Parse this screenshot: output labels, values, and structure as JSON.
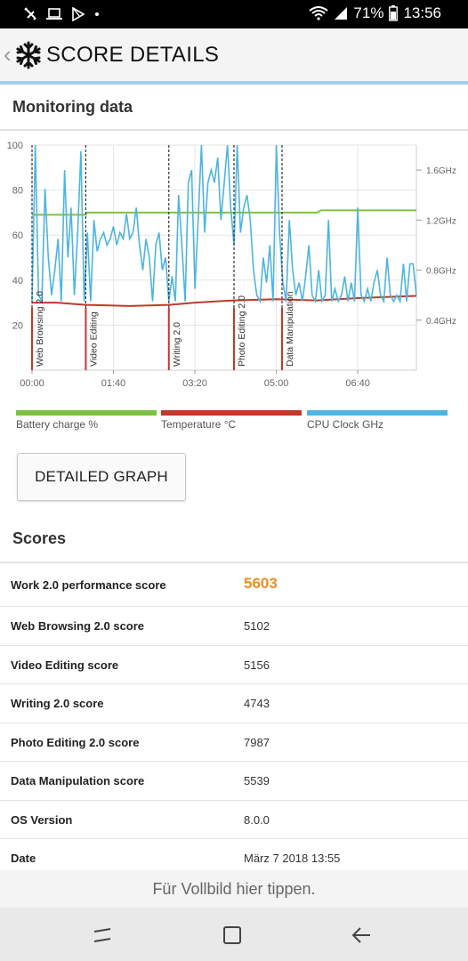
{
  "status_bar": {
    "battery_pct": "71%",
    "time": "13:56",
    "icons": [
      "tools-icon",
      "laptop-icon",
      "play-store-icon",
      "dot-icon",
      "wifi-icon",
      "signal-icon",
      "battery-icon"
    ]
  },
  "header": {
    "title": "SCORE DETAILS",
    "back_icon": "chevron-left-icon",
    "app_icon": "snowflake-icon"
  },
  "monitoring": {
    "title": "Monitoring data"
  },
  "chart_data": {
    "type": "line",
    "x_ticks": [
      "00:00",
      "01:40",
      "03:20",
      "05:00",
      "06:40"
    ],
    "y_left_ticks": [
      "100",
      "80",
      "60",
      "40",
      "20"
    ],
    "y_right_ticks": [
      "1.6GHz",
      "1.2GHz",
      "0.8GHz",
      "0.4GHz"
    ],
    "ylim_left": [
      0,
      100
    ],
    "ylim_right": [
      0,
      1.8
    ],
    "xlim_seconds": [
      0,
      472
    ],
    "phases": [
      {
        "label": "Web Browsing 2.0",
        "start": 0
      },
      {
        "label": "Video Editing",
        "start": 66
      },
      {
        "label": "Writing 2.0",
        "start": 168
      },
      {
        "label": "Photo Editing 2.0",
        "start": 248
      },
      {
        "label": "Data Manipulation",
        "start": 307
      }
    ],
    "series": [
      {
        "name": "Battery charge %",
        "color": "#7dc243",
        "x": [
          0,
          66,
          67,
          350,
          355,
          472
        ],
        "y": [
          69,
          69,
          70,
          70,
          71,
          71
        ]
      },
      {
        "name": "Temperature °C",
        "color": "#c0392b",
        "x": [
          0,
          30,
          66,
          120,
          168,
          200,
          248,
          300,
          350,
          400,
          472
        ],
        "y": [
          30,
          30,
          29,
          28.5,
          29,
          30,
          31,
          31.5,
          31,
          32,
          33
        ]
      },
      {
        "name": "CPU Clock GHz",
        "color": "#4db5e0",
        "x": [
          0,
          4,
          8,
          12,
          16,
          20,
          24,
          28,
          32,
          36,
          40,
          44,
          48,
          52,
          56,
          60,
          64,
          68,
          72,
          76,
          80,
          84,
          88,
          92,
          96,
          100,
          104,
          108,
          112,
          116,
          120,
          124,
          128,
          132,
          136,
          140,
          144,
          148,
          152,
          156,
          160,
          164,
          168,
          172,
          176,
          180,
          184,
          188,
          192,
          196,
          200,
          204,
          208,
          212,
          216,
          220,
          224,
          228,
          232,
          236,
          240,
          244,
          248,
          252,
          256,
          260,
          264,
          268,
          272,
          276,
          280,
          284,
          288,
          292,
          296,
          300,
          304,
          308,
          312,
          316,
          320,
          324,
          328,
          332,
          336,
          340,
          344,
          348,
          352,
          356,
          360,
          364,
          368,
          372,
          376,
          380,
          384,
          388,
          392,
          396,
          400,
          404,
          408,
          412,
          416,
          420,
          424,
          428,
          432,
          436,
          440,
          444,
          448,
          452,
          456,
          460,
          464,
          468,
          472
        ],
        "y": [
          0.55,
          1.8,
          0.6,
          0.55,
          1.45,
          0.9,
          0.6,
          0.8,
          1.05,
          0.55,
          1.6,
          0.9,
          1.3,
          0.6,
          1.1,
          1.75,
          0.55,
          1.1,
          0.55,
          1.2,
          0.95,
          1.05,
          1.1,
          1.0,
          1.05,
          1.15,
          1.0,
          1.1,
          1.05,
          1.25,
          1.05,
          1.1,
          1.3,
          1.0,
          0.8,
          1.05,
          0.9,
          0.55,
          1.0,
          1.1,
          0.8,
          0.9,
          0.55,
          0.75,
          0.55,
          1.4,
          1.0,
          0.55,
          1.5,
          1.6,
          0.65,
          1.2,
          1.8,
          1.1,
          1.5,
          1.6,
          1.5,
          1.7,
          1.2,
          1.5,
          1.8,
          1.3,
          1.0,
          1.8,
          1.1,
          1.3,
          1.4,
          1.2,
          0.8,
          0.6,
          0.55,
          0.9,
          0.7,
          1.0,
          0.55,
          1.8,
          1.1,
          0.7,
          0.55,
          1.2,
          0.8,
          0.6,
          0.7,
          0.55,
          0.75,
          1.0,
          0.6,
          0.55,
          0.8,
          0.55,
          0.6,
          1.2,
          0.55,
          0.65,
          0.55,
          0.6,
          0.75,
          0.55,
          0.7,
          0.55,
          1.3,
          0.6,
          0.55,
          0.65,
          0.55,
          0.7,
          0.8,
          0.6,
          0.55,
          0.9,
          0.6,
          0.55,
          0.6,
          0.55,
          0.85,
          0.55,
          0.85,
          0.85,
          0.6
        ]
      }
    ],
    "grid": true
  },
  "legend": {
    "battery": {
      "label": "Battery charge %",
      "color": "#7dc243"
    },
    "temperature": {
      "label": "Temperature °C",
      "color": "#c0392b"
    },
    "cpu": {
      "label": "CPU Clock GHz",
      "color": "#4db5e0"
    }
  },
  "detailed_graph_button": "DETAILED GRAPH",
  "scores": {
    "title": "Scores",
    "rows": [
      {
        "label": "Work 2.0 performance score",
        "value": "5603"
      },
      {
        "label": "Web Browsing 2.0 score",
        "value": "5102"
      },
      {
        "label": "Video Editing score",
        "value": "5156"
      },
      {
        "label": "Writing 2.0 score",
        "value": "4743"
      },
      {
        "label": "Photo Editing 2.0 score",
        "value": "7987"
      },
      {
        "label": "Data Manipulation score",
        "value": "5539"
      },
      {
        "label": "OS Version",
        "value": "8.0.0"
      },
      {
        "label": "Date",
        "value": "März 7 2018 13:55"
      }
    ]
  },
  "fullscreen_hint": "Für Vollbild hier tippen.",
  "nav_bar": {
    "icons": [
      "recent-apps-icon",
      "home-icon",
      "back-arrow-icon"
    ]
  }
}
